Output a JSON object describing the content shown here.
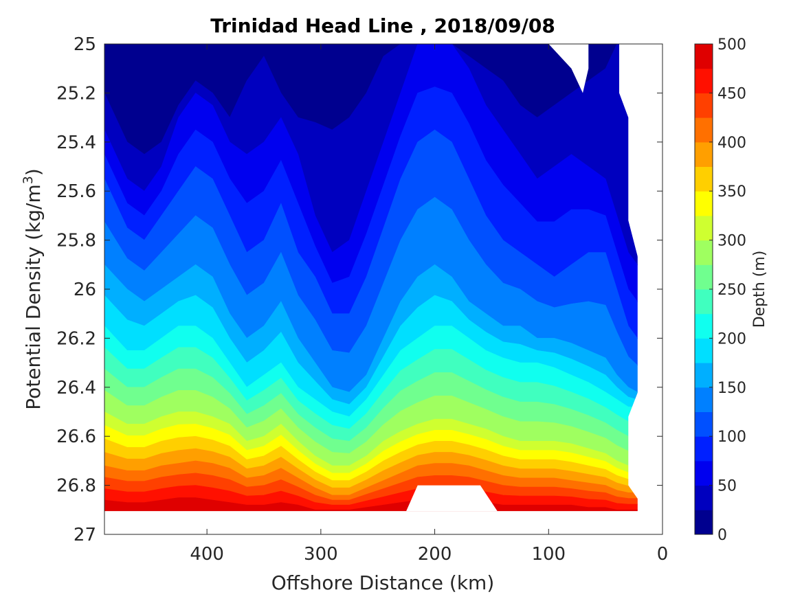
{
  "chart_data": {
    "type": "contour",
    "title": "Trinidad Head Line , 2018/09/08",
    "xlabel": "Offshore Distance (km)",
    "ylabel": "Potential Density (kg/m",
    "ylabel_sup": "3",
    "ylabel_close": ")",
    "colorbar_label": "Depth (m)",
    "x_reversed": true,
    "y_reversed": true,
    "xlim": [
      0,
      490
    ],
    "ylim": [
      25,
      27
    ],
    "xticks": [
      400,
      300,
      200,
      100,
      0
    ],
    "xtick_labels": [
      "400",
      "300",
      "200",
      "100",
      "0"
    ],
    "yticks": [
      25,
      25.2,
      25.4,
      25.6,
      25.8,
      26,
      26.2,
      26.4,
      26.6,
      26.8,
      27
    ],
    "ytick_labels": [
      "25",
      "25.2",
      "25.4",
      "25.6",
      "25.8",
      "26",
      "26.2",
      "26.4",
      "26.6",
      "26.8",
      "27"
    ],
    "colorbar_ticks": [
      0,
      50,
      100,
      150,
      200,
      250,
      300,
      350,
      400,
      450,
      500
    ],
    "colorbar_tick_labels": [
      "0",
      "50",
      "100",
      "150",
      "200",
      "250",
      "300",
      "350",
      "400",
      "450",
      "500"
    ],
    "levels": [
      0,
      25,
      50,
      75,
      100,
      125,
      150,
      175,
      200,
      225,
      250,
      275,
      300,
      325,
      350,
      375,
      400,
      425,
      450,
      475,
      500
    ],
    "level_colors": [
      "#00008f",
      "#0000bf",
      "#0000ef",
      "#0020ff",
      "#0050ff",
      "#0080ff",
      "#00afff",
      "#00dfff",
      "#10ffef",
      "#40ffbf",
      "#70ff8f",
      "#9fff60",
      "#cfff30",
      "#ffff00",
      "#ffcf00",
      "#ff9f00",
      "#ff7000",
      "#ff4000",
      "#ff1000",
      "#df0000"
    ],
    "stations_x": [
      490,
      470,
      455,
      440,
      425,
      410,
      395,
      380,
      365,
      350,
      335,
      320,
      305,
      290,
      275,
      260,
      245,
      230,
      215,
      200,
      185,
      170,
      155,
      140,
      125,
      110,
      95,
      80,
      65,
      50,
      40,
      30,
      22
    ],
    "contour_isopycnals": [
      {
        "depth": 25,
        "y": [
          25.2,
          25.4,
          25.45,
          25.4,
          25.25,
          25.15,
          25.2,
          25.3,
          25.15,
          25.05,
          25.2,
          25.3,
          25.32,
          25.35,
          25.3,
          25.2,
          25.05,
          25.0,
          25.0,
          25.0,
          25.0,
          25.05,
          25.1,
          25.15,
          25.25,
          25.3,
          25.25,
          25.2,
          25.15,
          25.1,
          25.0,
          25.0,
          25.0
        ]
      },
      {
        "depth": 50,
        "y": [
          25.35,
          25.55,
          25.6,
          25.5,
          25.3,
          25.2,
          25.25,
          25.4,
          25.45,
          25.4,
          25.3,
          25.45,
          25.7,
          25.85,
          25.8,
          25.6,
          25.4,
          25.2,
          25.0,
          25.0,
          25.0,
          25.1,
          25.25,
          25.35,
          25.45,
          25.55,
          25.5,
          25.45,
          25.5,
          25.55,
          25.7,
          25.85,
          25.9
        ]
      },
      {
        "depth": 100,
        "y": [
          25.55,
          25.75,
          25.8,
          25.7,
          25.6,
          25.5,
          25.55,
          25.7,
          25.85,
          25.8,
          25.65,
          25.85,
          25.95,
          26.1,
          26.1,
          25.95,
          25.75,
          25.55,
          25.4,
          25.35,
          25.4,
          25.55,
          25.7,
          25.8,
          25.85,
          25.9,
          25.95,
          25.9,
          25.85,
          25.85,
          26.0,
          26.15,
          26.2
        ]
      },
      {
        "depth": 150,
        "y": [
          25.9,
          26.0,
          26.05,
          26.0,
          25.95,
          25.9,
          25.95,
          26.1,
          26.2,
          26.15,
          26.05,
          26.2,
          26.3,
          26.4,
          26.42,
          26.35,
          26.2,
          26.05,
          25.95,
          25.9,
          25.95,
          26.05,
          26.1,
          26.15,
          26.15,
          26.2,
          26.2,
          26.22,
          26.25,
          26.28,
          26.35,
          26.4,
          26.42
        ]
      },
      {
        "depth": 200,
        "y": [
          26.15,
          26.25,
          26.25,
          26.2,
          26.15,
          26.15,
          26.2,
          26.3,
          26.4,
          26.35,
          26.3,
          26.4,
          26.45,
          26.5,
          26.52,
          26.45,
          26.35,
          26.25,
          26.2,
          26.15,
          26.15,
          26.2,
          26.25,
          26.28,
          26.3,
          26.3,
          26.32,
          26.35,
          26.38,
          26.42,
          26.45,
          26.48,
          26.48
        ]
      },
      {
        "depth": 300,
        "y": [
          26.5,
          26.55,
          26.55,
          26.52,
          26.5,
          26.5,
          26.52,
          26.55,
          26.62,
          26.6,
          26.55,
          26.62,
          26.68,
          26.72,
          26.72,
          26.68,
          26.62,
          26.58,
          26.55,
          26.53,
          26.53,
          26.55,
          26.57,
          26.6,
          26.62,
          26.62,
          26.62,
          26.63,
          26.65,
          26.67,
          26.7,
          26.72,
          26.72
        ]
      },
      {
        "depth": 400,
        "y": [
          26.72,
          26.74,
          26.74,
          26.72,
          26.71,
          26.7,
          26.71,
          26.73,
          26.77,
          26.76,
          26.73,
          26.77,
          26.81,
          26.84,
          26.84,
          26.81,
          26.78,
          26.75,
          26.72,
          26.71,
          26.71,
          26.72,
          26.74,
          26.76,
          26.77,
          26.77,
          26.77,
          26.78,
          26.79,
          26.8,
          26.82,
          26.83,
          26.83
        ]
      },
      {
        "depth": 475,
        "y": [
          26.86,
          26.87,
          26.87,
          26.86,
          26.85,
          26.85,
          26.86,
          26.87,
          26.88,
          26.88,
          26.87,
          26.88,
          26.9,
          26.9,
          26.9,
          26.89,
          26.88,
          26.87,
          26.86,
          26.86,
          26.86,
          26.86,
          26.87,
          26.88,
          26.88,
          26.88,
          26.88,
          26.88,
          26.89,
          26.89,
          26.9,
          26.9,
          26.9
        ]
      }
    ]
  }
}
